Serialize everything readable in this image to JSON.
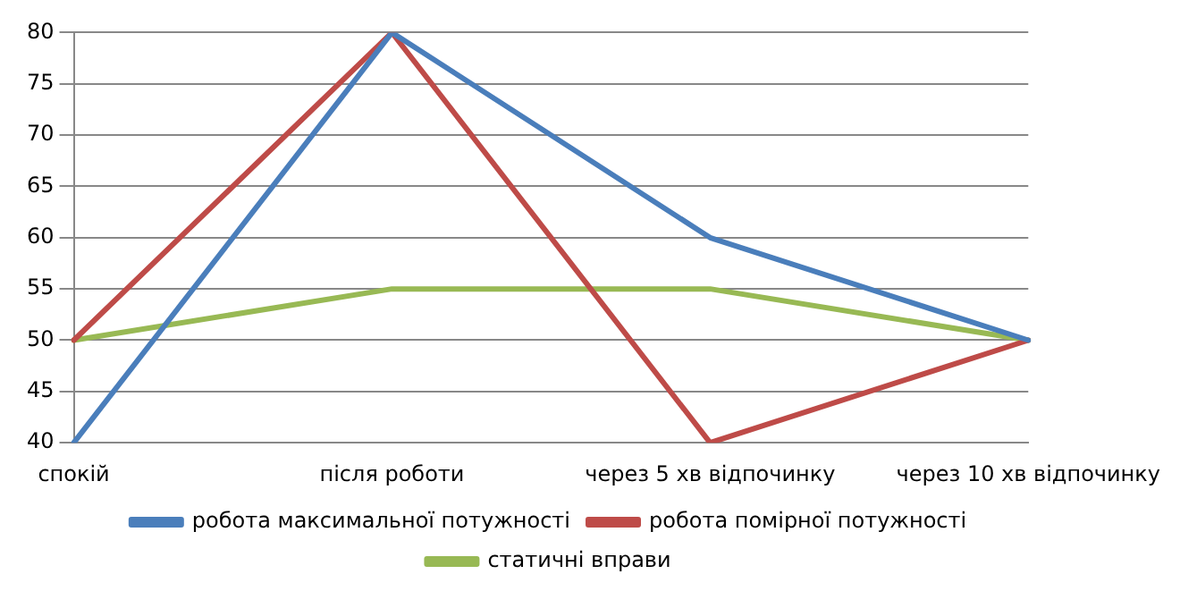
{
  "chart_data": {
    "type": "line",
    "categories": [
      "спокій",
      "після роботи",
      "через 5 хв відпочинку",
      "через 10 хв відпочинку"
    ],
    "series": [
      {
        "name": "робота максимальної потужності",
        "color": "#4a7ebb",
        "values": [
          40,
          80,
          60,
          50
        ]
      },
      {
        "name": "робота помірної потужності",
        "color": "#be4b48",
        "values": [
          50,
          80,
          40,
          50
        ]
      },
      {
        "name": "статичні вправи",
        "color": "#98b954",
        "values": [
          50,
          55,
          55,
          50
        ]
      }
    ],
    "ylim": [
      40,
      80
    ],
    "yticks": [
      40,
      45,
      50,
      55,
      60,
      65,
      70,
      75,
      80
    ],
    "grid": "y",
    "legend": "bottom",
    "marker": "none",
    "line_style": "solid"
  }
}
